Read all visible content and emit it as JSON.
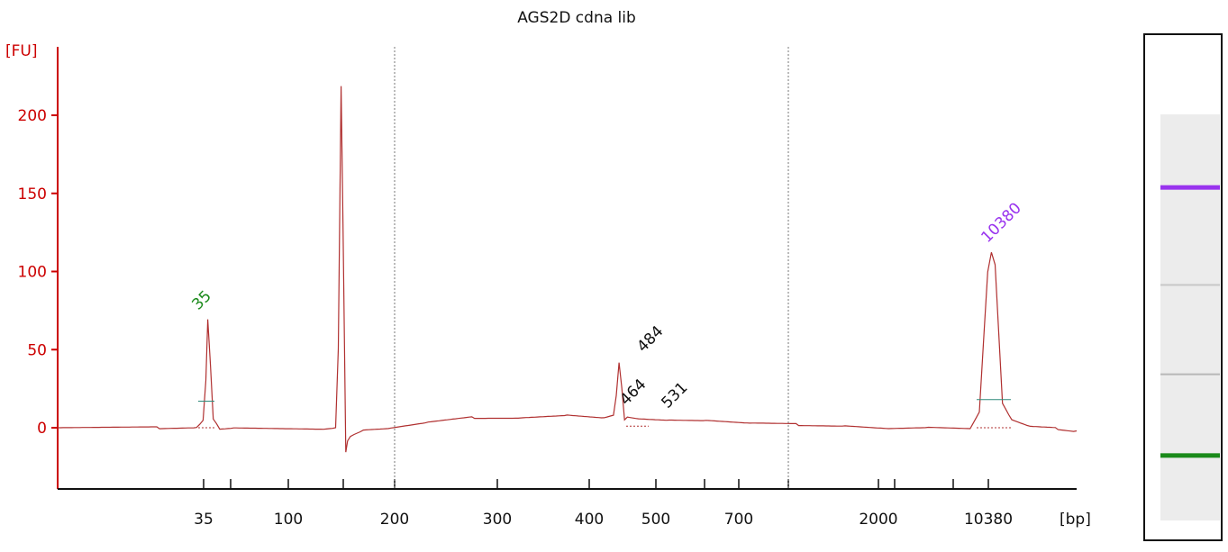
{
  "chart_data": {
    "type": "line",
    "title": "AGS2D cdna lib",
    "ylabel": "[FU]",
    "xlabel": "[bp]",
    "ylim": [
      -35,
      240
    ],
    "y_ticks": [
      0,
      50,
      100,
      150,
      200
    ],
    "x_tick_labels": [
      "35",
      "100",
      "200",
      "300",
      "400",
      "500",
      "700",
      "2000",
      "10380"
    ],
    "grid": false,
    "colors": {
      "axis": "#cc0000",
      "trace": "#b03030",
      "marker_green": "#1a8a1a",
      "marker_purple": "#9933ee",
      "peak_text": "#111111"
    },
    "peaks": [
      {
        "label": "35",
        "color": "#1a8a1a"
      },
      {
        "label": "464",
        "color": "#111111"
      },
      {
        "label": "484",
        "color": "#111111"
      },
      {
        "label": "531",
        "color": "#111111"
      },
      {
        "label": "10380",
        "color": "#9933ee"
      }
    ],
    "series": [
      {
        "values_x": [
          0,
          110,
          150,
          157,
          160,
          162,
          165,
          168,
          175,
          190,
          290,
          300,
          303,
          306,
          308,
          311,
          313,
          316,
          320,
          330,
          360,
          400,
          450,
          500,
          550,
          590,
          600,
          603,
          606,
          609,
          612,
          615,
          630,
          660,
          700,
          750,
          800,
          850,
          900,
          940,
          985,
          995,
          1000,
          1004,
          1008,
          1012,
          1016,
          1020,
          1030,
          1050,
          1080,
          1100
        ],
        "values_y": [
          0,
          0,
          0,
          5,
          30,
          70,
          40,
          5,
          0,
          0,
          0,
          0,
          50,
          219,
          130,
          -15,
          -8,
          -6,
          -4,
          -2,
          0,
          3,
          6,
          7,
          8,
          7,
          8,
          20,
          42,
          25,
          6,
          7,
          5,
          5,
          4,
          3,
          2,
          1,
          0,
          0,
          0,
          10,
          60,
          100,
          112,
          105,
          60,
          15,
          5,
          0,
          0,
          -2
        ]
      }
    ],
    "gel": {
      "bands": [
        {
          "position": 0.18,
          "color": "#9933ee"
        },
        {
          "position": 0.42,
          "color": "#c8c8c8"
        },
        {
          "position": 0.64,
          "color": "#b8b8b8"
        },
        {
          "position": 0.84,
          "color": "#1a8a1a"
        }
      ]
    }
  }
}
